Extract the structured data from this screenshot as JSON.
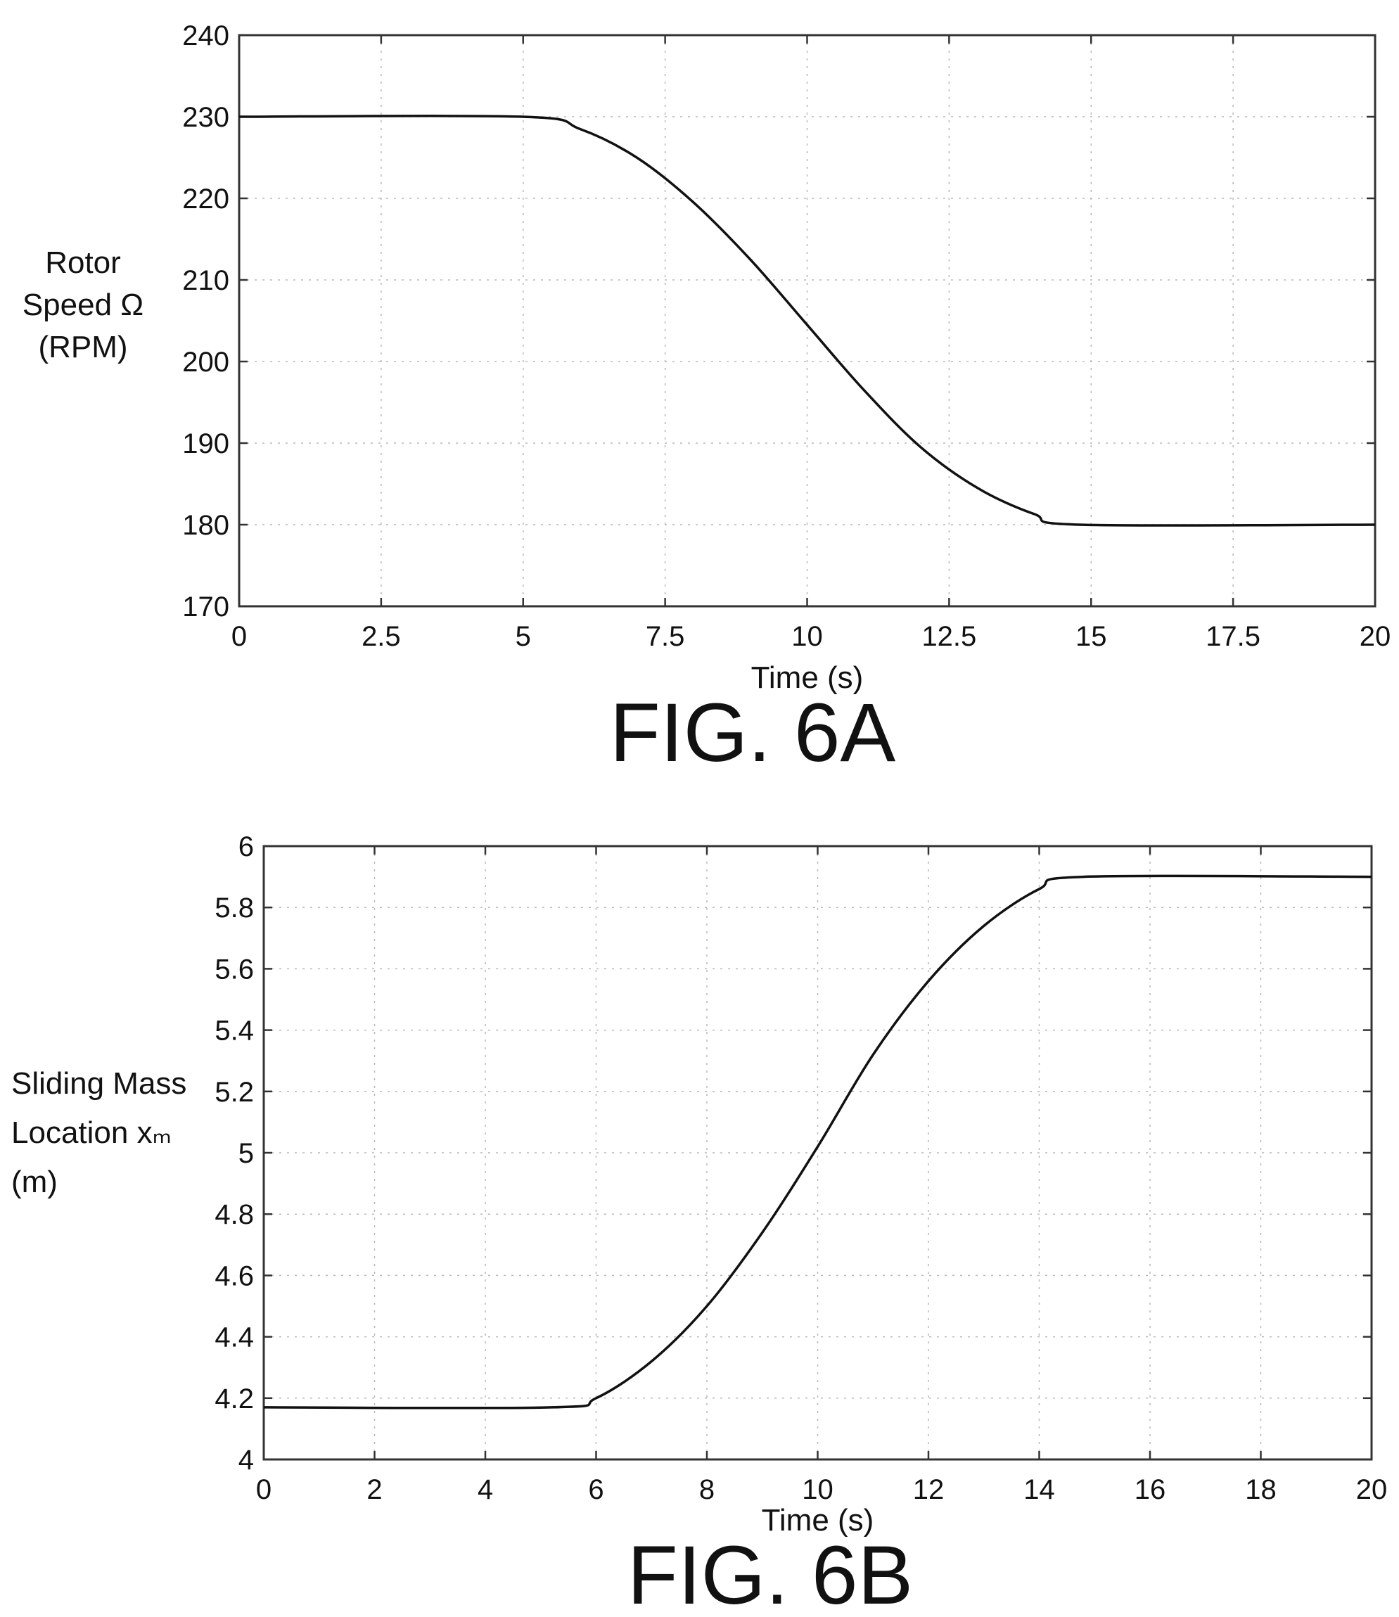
{
  "figures": [
    {
      "caption": "FIG. 6A",
      "xlabel": "Time (s)",
      "ylabel_lines": [
        "Rotor",
        "Speed Ω",
        "(RPM)"
      ]
    },
    {
      "caption": "FIG. 6B",
      "xlabel": "Time (s)",
      "ylabel_lines": [
        "Sliding Mass",
        "Location xₘ",
        "(m)"
      ]
    }
  ],
  "chart_data": [
    {
      "type": "line",
      "title": "",
      "caption": "FIG. 6A",
      "xlabel": "Time (s)",
      "ylabel": "Rotor Speed Ω (RPM)",
      "xlim": [
        0,
        20
      ],
      "ylim": [
        170,
        240
      ],
      "xticks": [
        "0",
        "2.5",
        "5",
        "7.5",
        "10",
        "12.5",
        "15",
        "17.5",
        "20"
      ],
      "yticks": [
        "170",
        "180",
        "190",
        "200",
        "210",
        "220",
        "230",
        "240"
      ],
      "grid": true,
      "series": [
        {
          "x": [
            0,
            5,
            6,
            7,
            8,
            9,
            10,
            11,
            12,
            13,
            14,
            14.8,
            20
          ],
          "y": [
            230,
            230,
            228.5,
            225,
            219.5,
            212.5,
            204.5,
            196.5,
            189.5,
            184.5,
            181.3,
            180,
            180
          ]
        }
      ]
    },
    {
      "type": "line",
      "title": "",
      "caption": "FIG. 6B",
      "xlabel": "Time (s)",
      "ylabel": "Sliding Mass Location xₘ (m)",
      "xlim": [
        0,
        20
      ],
      "ylim": [
        4,
        6
      ],
      "xticks": [
        "0",
        "2",
        "4",
        "6",
        "8",
        "10",
        "12",
        "14",
        "16",
        "18",
        "20"
      ],
      "yticks": [
        "4",
        "4.2",
        "4.4",
        "4.6",
        "4.8",
        "5",
        "5.2",
        "5.4",
        "5.6",
        "5.8",
        "6"
      ],
      "grid": true,
      "series": [
        {
          "x": [
            0,
            5.2,
            6,
            7,
            8,
            9,
            10,
            11,
            12,
            13,
            14,
            14.8,
            20
          ],
          "y": [
            4.17,
            4.17,
            4.2,
            4.32,
            4.5,
            4.74,
            5.02,
            5.32,
            5.56,
            5.74,
            5.86,
            5.9,
            5.9
          ]
        }
      ]
    }
  ]
}
